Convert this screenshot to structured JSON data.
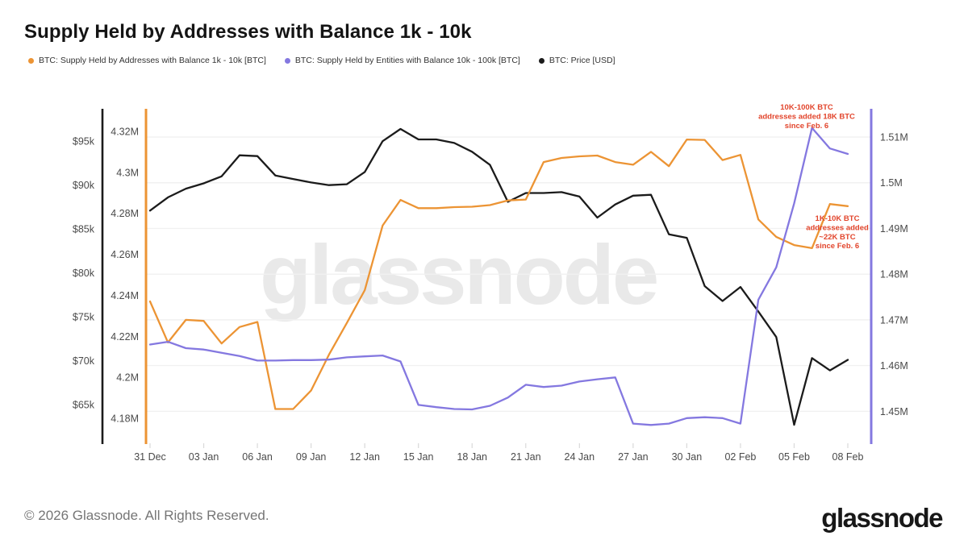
{
  "header": {
    "title": "Supply Held by Addresses with Balance 1k - 10k"
  },
  "legend": [
    {
      "label": "BTC: Supply Held by Addresses with Balance 1k - 10k [BTC]",
      "color": "#EC9434"
    },
    {
      "label": "BTC: Supply Held by Entities with Balance 10k - 100k [BTC]",
      "color": "#8478E0"
    },
    {
      "label": "BTC: Price [USD]",
      "color": "#1B1B1B"
    }
  ],
  "watermark": "glassnode",
  "footer": {
    "copyright": "© 2026 Glassnode. All Rights Reserved.",
    "logo": "glassnode"
  },
  "chart_data": {
    "type": "line",
    "title": "Supply Held by Addresses with Balance 1k - 10k",
    "grid": true,
    "legend_position": "top",
    "dates": [
      "31 Dec",
      "01 Jan",
      "02 Jan",
      "03 Jan",
      "04 Jan",
      "05 Jan",
      "06 Jan",
      "07 Jan",
      "08 Jan",
      "09 Jan",
      "10 Jan",
      "11 Jan",
      "12 Jan",
      "13 Jan",
      "14 Jan",
      "15 Jan",
      "16 Jan",
      "17 Jan",
      "18 Jan",
      "19 Jan",
      "20 Jan",
      "21 Jan",
      "22 Jan",
      "23 Jan",
      "24 Jan",
      "25 Jan",
      "26 Jan",
      "27 Jan",
      "28 Jan",
      "29 Jan",
      "30 Jan",
      "31 Jan",
      "01 Feb",
      "02 Feb",
      "03 Feb",
      "04 Feb",
      "05 Feb",
      "06 Feb",
      "07 Feb",
      "08 Feb"
    ],
    "x_tick_labels": [
      "31 Dec",
      "03 Jan",
      "06 Jan",
      "09 Jan",
      "12 Jan",
      "15 Jan",
      "18 Jan",
      "21 Jan",
      "24 Jan",
      "27 Jan",
      "30 Jan",
      "02 Feb",
      "05 Feb",
      "08 Feb"
    ],
    "x_tick_indices": [
      0,
      3,
      6,
      9,
      12,
      15,
      18,
      21,
      24,
      27,
      30,
      33,
      36,
      39
    ],
    "axes": {
      "price_usd": {
        "label_color": "#4a4a4a",
        "axis_color": "#1B1B1B",
        "side": "left-outer",
        "ticks": [
          "$95k",
          "$90k",
          "$85k",
          "$80k",
          "$75k",
          "$70k",
          "$65k"
        ],
        "tick_values": [
          95,
          90,
          85,
          80,
          75,
          70,
          65
        ],
        "range_min": 60.6,
        "range_max": 98.6
      },
      "supply_1k_10k": {
        "label_color": "#4a4a4a",
        "axis_color": "#EC9434",
        "side": "left-inner",
        "ticks": [
          "4.32M",
          "4.3M",
          "4.28M",
          "4.26M",
          "4.24M",
          "4.22M",
          "4.2M",
          "4.18M"
        ],
        "tick_values": [
          4.32,
          4.3,
          4.28,
          4.26,
          4.24,
          4.22,
          4.2,
          4.18
        ],
        "range_min": 4.1678,
        "range_max": 4.3306
      },
      "entities_10k_100k": {
        "label_color": "#4a4a4a",
        "axis_color": "#8478E0",
        "side": "right",
        "ticks": [
          "1.51M",
          "1.5M",
          "1.49M",
          "1.48M",
          "1.47M",
          "1.46M",
          "1.45M"
        ],
        "tick_values": [
          1.51,
          1.5,
          1.49,
          1.48,
          1.47,
          1.46,
          1.45
        ],
        "range_min": 1.443,
        "range_max": 1.516
      }
    },
    "series": [
      {
        "id": "supply-1k-10k",
        "name": "BTC: Supply Held by Addresses with Balance 1k - 10k [BTC]",
        "axis": "supply_1k_10k",
        "color": "#EC9434",
        "unit": "BTC (millions)",
        "values": [
          4.237,
          4.217,
          4.228,
          4.2275,
          4.2165,
          4.2245,
          4.227,
          4.1845,
          4.1845,
          4.1935,
          4.211,
          4.2265,
          4.2425,
          4.274,
          4.2865,
          4.2825,
          4.2825,
          4.283,
          4.2832,
          4.284,
          4.2863,
          4.2867,
          4.305,
          4.307,
          4.3078,
          4.3082,
          4.305,
          4.3037,
          4.31,
          4.303,
          4.316,
          4.3158,
          4.306,
          4.3085,
          4.277,
          4.2685,
          4.2645,
          4.263,
          4.2845,
          4.2835
        ]
      },
      {
        "id": "entities-10k-100k",
        "name": "BTC: Supply Held by Entities with Balance 10k - 100k [BTC]",
        "axis": "entities_10k_100k",
        "color": "#8478E0",
        "unit": "BTC (millions)",
        "values": [
          1.4646,
          1.4652,
          1.4638,
          1.4635,
          1.4628,
          1.4621,
          1.4611,
          1.4611,
          1.4612,
          1.4612,
          1.4613,
          1.4618,
          1.462,
          1.4622,
          1.4609,
          1.4514,
          1.4509,
          1.4505,
          1.4504,
          1.4512,
          1.453,
          1.4558,
          1.4553,
          1.4556,
          1.4565,
          1.457,
          1.4574,
          1.4473,
          1.447,
          1.4473,
          1.4485,
          1.4487,
          1.4485,
          1.4473,
          1.4744,
          1.4815,
          1.4955,
          1.512,
          1.5075,
          1.5063
        ]
      },
      {
        "id": "price",
        "name": "BTC: Price [USD]",
        "axis": "price_usd",
        "color": "#1B1B1B",
        "unit": "USD (thousands)",
        "values": [
          87.1,
          88.6,
          89.6,
          90.2,
          91.0,
          93.4,
          93.3,
          91.1,
          90.7,
          90.3,
          90.0,
          90.1,
          91.5,
          95.0,
          96.4,
          95.2,
          95.2,
          94.8,
          93.8,
          92.3,
          88.1,
          89.1,
          89.1,
          89.2,
          88.7,
          86.3,
          87.8,
          88.8,
          88.9,
          84.4,
          84.0,
          78.5,
          76.8,
          78.4,
          75.6,
          72.7,
          62.7,
          70.3,
          68.9,
          70.1
        ]
      }
    ],
    "annotations": [
      {
        "text_lines": [
          "10K-100K BTC",
          "addresses added 18K BTC",
          "since Feb. 6"
        ],
        "x": 1000,
        "y": 136,
        "color": "#E2452C"
      },
      {
        "text_lines": [
          "1K-10K BTC",
          "addresses added",
          "~22K BTC",
          "since Feb. 6"
        ],
        "x": 1038,
        "y": 274,
        "color": "#E2452C"
      }
    ]
  }
}
